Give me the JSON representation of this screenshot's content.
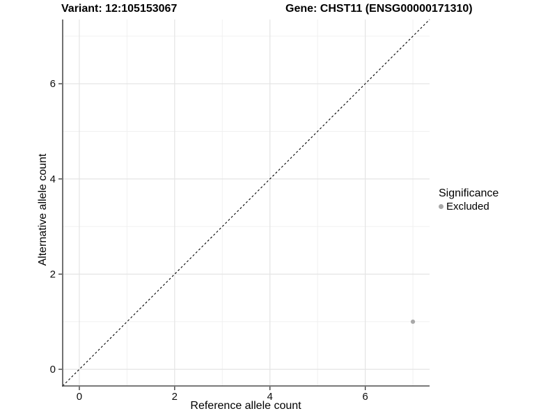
{
  "titles": {
    "left": "Variant: 12:105153067",
    "right": "Gene: CHST11 (ENSG00000171310)"
  },
  "chart_data": {
    "type": "scatter",
    "title_left": "Variant: 12:105153067",
    "title_right": "Gene: CHST11 (ENSG00000171310)",
    "xlabel": "Reference allele count",
    "ylabel": "Alternative allele count",
    "xlim": [
      -0.35,
      7.35
    ],
    "ylim": [
      -0.35,
      7.35
    ],
    "x_major_ticks": [
      0,
      2,
      4,
      6
    ],
    "y_major_ticks": [
      0,
      2,
      4,
      6
    ],
    "x_minor_ticks": [
      1,
      3,
      5,
      7
    ],
    "y_minor_ticks": [
      1,
      3,
      5,
      7
    ],
    "grid": true,
    "reference_line": {
      "kind": "identity",
      "style": "dashed",
      "color": "#000000"
    },
    "series": [
      {
        "name": "Excluded",
        "color": "#a8a8a8",
        "points": [
          {
            "x": 7,
            "y": 1
          }
        ]
      }
    ],
    "legend": {
      "title": "Significance",
      "position": "right",
      "items": [
        {
          "label": "Excluded",
          "color": "#a8a8a8"
        }
      ]
    }
  },
  "colors": {
    "background": "#ffffff",
    "grid_major": "#e4e4e4",
    "grid_minor": "#f0f0f0",
    "axis_line": "#4d4d4d",
    "tick_mark": "#333333",
    "tick_label": "#0d0d0d",
    "point": "#a8a8a8",
    "dashed_line": "#000000"
  }
}
